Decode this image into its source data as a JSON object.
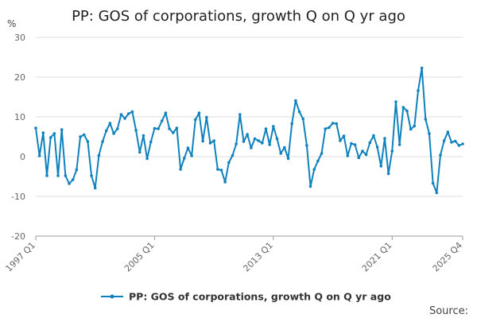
{
  "chart_data": {
    "type": "line",
    "title": "PP: GOS of corporations, growth Q on Q yr ago",
    "ylabel": "%",
    "xlabel": "",
    "ylim": [
      -20,
      30
    ],
    "yticks": [
      30,
      20,
      10,
      0,
      -10,
      -20
    ],
    "xtick_labels": [
      "1997 Q1",
      "2005 Q1",
      "2013 Q1",
      "2021 Q1",
      "2025 Q4"
    ],
    "x_start": "1997 Q1",
    "x_end": "2025 Q4",
    "grid": true,
    "legend_position": "bottom",
    "source_label": "Source:",
    "series": [
      {
        "name": "PP: GOS of corporations, growth Q on Q yr ago",
        "color": "#0f82bd",
        "values": [
          7.2,
          0.2,
          6,
          -4.8,
          4.8,
          5.8,
          -4.8,
          6.8,
          -4.8,
          -6.8,
          -5.8,
          -3.3,
          5,
          5.5,
          3.8,
          -4.8,
          -7.9,
          0.3,
          3.8,
          6.5,
          8.4,
          5.8,
          7,
          10.6,
          9.6,
          10.8,
          11.3,
          6.6,
          1.1,
          5.3,
          -0.5,
          3.7,
          7.1,
          7,
          9,
          11,
          7,
          6,
          7.2,
          -3.2,
          -0.4,
          2.2,
          0.2,
          9.3,
          11,
          3.9,
          9.9,
          3.4,
          4,
          -3.2,
          -3.4,
          -6.4,
          -1.5,
          0.3,
          3.2,
          10.6,
          3.8,
          5.6,
          2.2,
          4.5,
          4,
          3.4,
          7,
          3,
          7.6,
          4.5,
          0.8,
          2.3,
          -0.5,
          8.3,
          14.1,
          11.3,
          9.5,
          2.8,
          -7.5,
          -3.2,
          -1.1,
          0.8,
          7,
          7.3,
          8.4,
          8.3,
          4,
          5.2,
          0.2,
          3.3,
          3,
          -0.3,
          1.4,
          0.5,
          3.5,
          5.3,
          2.4,
          -2.4,
          4.6,
          -4.3,
          1.4,
          13.8,
          3,
          12.4,
          11.5,
          6.9,
          7.7,
          16.6,
          22.3,
          9.4,
          5.8,
          -6.7,
          -9.1,
          0.4,
          4,
          6.2,
          3.6,
          3.9,
          2.8,
          3.2
        ]
      }
    ]
  }
}
